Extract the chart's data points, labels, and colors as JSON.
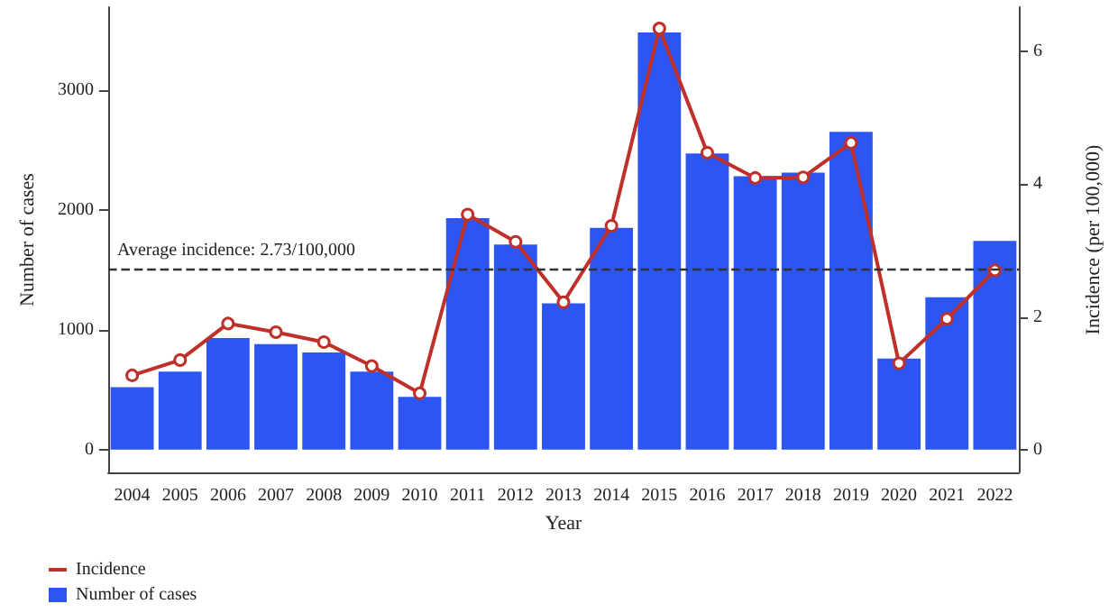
{
  "chart_data": {
    "type": "bar",
    "xlabel": "Year",
    "ylabel": "Number of cases",
    "y2label": "Incidence (per 100,000)",
    "categories": [
      "2004",
      "2005",
      "2006",
      "2007",
      "2008",
      "2009",
      "2010",
      "2011",
      "2012",
      "2013",
      "2014",
      "2015",
      "2016",
      "2017",
      "2018",
      "2019",
      "2020",
      "2021",
      "2022"
    ],
    "series": [
      {
        "name": "Incidence",
        "type": "line",
        "axis": "y2",
        "color": "#c0302b",
        "values": [
          1.12,
          1.35,
          1.9,
          1.77,
          1.62,
          1.26,
          0.85,
          3.54,
          3.13,
          2.22,
          3.37,
          6.34,
          4.47,
          4.09,
          4.1,
          4.62,
          1.3,
          1.97,
          2.7
        ]
      },
      {
        "name": "Number of cases",
        "color": "#2d55f2",
        "values": [
          520,
          650,
          930,
          880,
          810,
          650,
          440,
          1930,
          1710,
          1220,
          1850,
          3480,
          2470,
          2280,
          2310,
          2650,
          760,
          1270,
          1740
        ]
      }
    ],
    "ylim": [
      -190,
      3690
    ],
    "yticks": [
      0,
      1000,
      2000,
      3000
    ],
    "y2lim": [
      -0.34,
      6.66
    ],
    "y2ticks": [
      0,
      2,
      4,
      6
    ],
    "ref_lines": [
      {
        "axis": "y2",
        "value": 2.73,
        "label": "Average incidence: 2.73/100,000",
        "color": "#333333",
        "line_style": "dashed"
      }
    ],
    "legend": "bottom left",
    "grid": false,
    "marker": "circle",
    "line_style": "solid"
  }
}
